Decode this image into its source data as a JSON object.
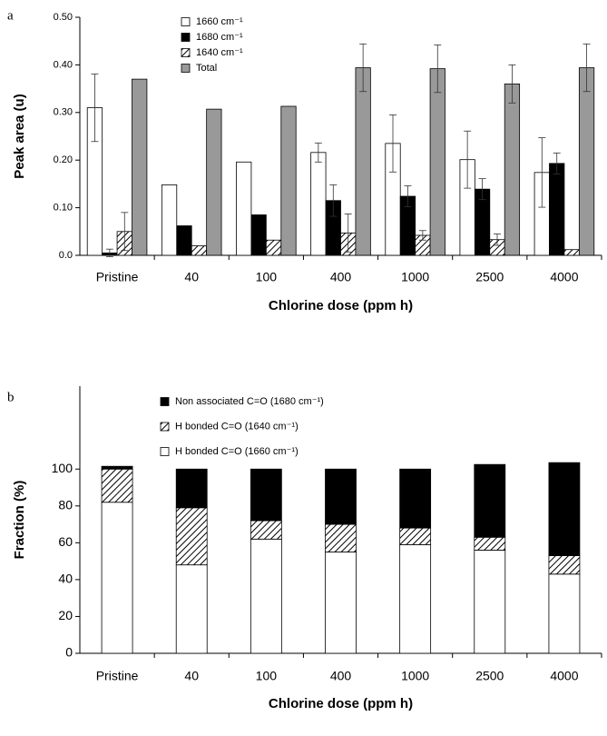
{
  "chart_data": [
    {
      "type": "bar",
      "panel_label": "a",
      "x_label": "Chlorine dose (ppm h)",
      "y_label": "Peak area (u)",
      "categories": [
        "Pristine",
        "40",
        "100",
        "400",
        "1000",
        "2500",
        "4000"
      ],
      "ylim": [
        0,
        0.5
      ],
      "yticks": [
        {
          "value": 0,
          "label": "0.0"
        },
        {
          "value": 0.1,
          "label": "0.10"
        },
        {
          "value": 0.2,
          "label": "0.20"
        },
        {
          "value": 0.3,
          "label": "0.30"
        },
        {
          "value": 0.4,
          "label": "0.40"
        },
        {
          "value": 0.5,
          "label": "0.50"
        }
      ],
      "series": [
        {
          "name": "1660 cm⁻¹",
          "color": "#ffffff",
          "values": [
            0.31,
            0.148,
            0.196,
            0.216,
            0.235,
            0.201,
            0.174
          ],
          "errors": [
            0.071,
            null,
            null,
            0.02,
            0.06,
            0.06,
            0.073
          ]
        },
        {
          "name": "1680 cm⁻¹",
          "color": "#000000",
          "values": [
            0.005,
            0.062,
            0.085,
            0.115,
            0.124,
            0.139,
            0.193
          ],
          "errors": [
            0.008,
            null,
            null,
            0.033,
            0.022,
            0.022,
            0.022
          ]
        },
        {
          "name": "1640 cm⁻¹",
          "color": "#ffffff",
          "pattern": "hatch",
          "values": [
            0.05,
            0.02,
            0.032,
            0.047,
            0.042,
            0.033,
            0.012
          ],
          "errors": [
            0.04,
            null,
            null,
            0.04,
            0.01,
            0.012,
            null
          ]
        },
        {
          "name": "Total",
          "color": "#999999",
          "values": [
            0.37,
            0.307,
            0.313,
            0.394,
            0.392,
            0.36,
            0.394
          ],
          "errors": [
            null,
            null,
            null,
            0.05,
            0.05,
            0.04,
            0.05
          ]
        }
      ]
    },
    {
      "type": "stacked_bar",
      "panel_label": "b",
      "x_label": "Chlorine dose (ppm h)",
      "y_label": "Fraction (%)",
      "categories": [
        "Pristine",
        "40",
        "100",
        "400",
        "1000",
        "2500",
        "4000"
      ],
      "ylim": [
        0,
        145
      ],
      "yticks": [
        0,
        20,
        40,
        60,
        80,
        100
      ],
      "series": [
        {
          "name": "H bonded C=O (1660 cm⁻¹)",
          "color": "#ffffff",
          "values": [
            82,
            48,
            62,
            55,
            59,
            56,
            43
          ]
        },
        {
          "name": "H bonded C=O (1640 cm⁻¹)",
          "color": "#ffffff",
          "pattern": "hatch",
          "values": [
            18,
            31,
            10,
            15,
            9,
            7,
            10
          ]
        },
        {
          "name": "Non associated C=O (1680 cm⁻¹)",
          "color": "#000000",
          "values": [
            1.5,
            21,
            28,
            30,
            32,
            39.5,
            50.5
          ]
        }
      ]
    }
  ]
}
